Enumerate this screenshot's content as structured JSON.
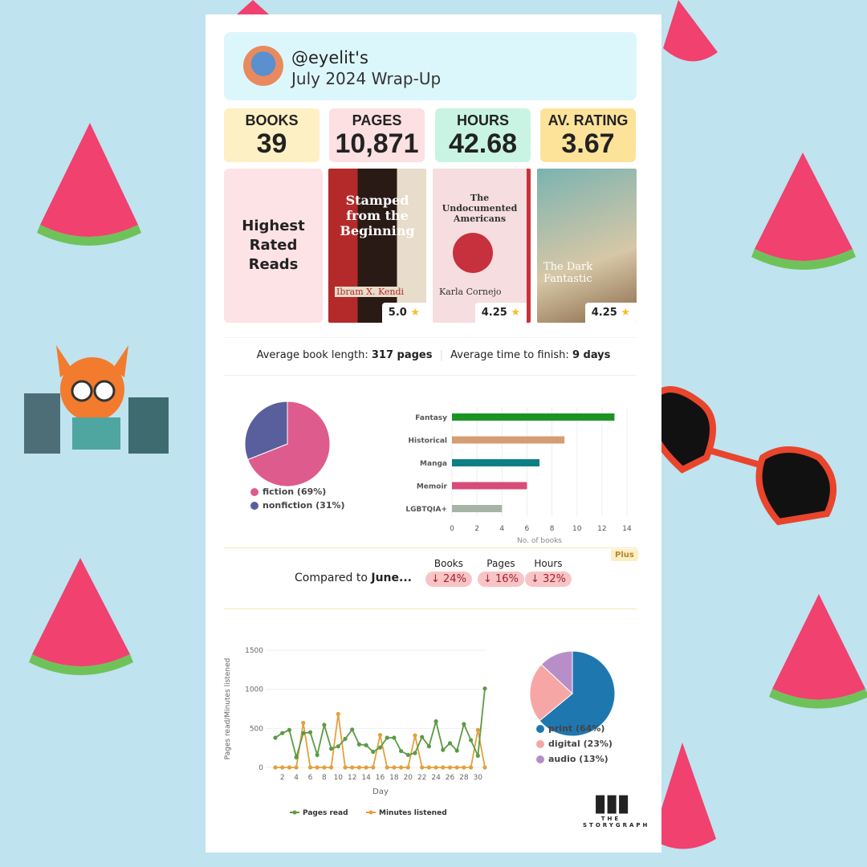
{
  "header": {
    "username": "@eyelit's",
    "title": "July 2024 Wrap-Up"
  },
  "stats": [
    {
      "label": "BOOKS",
      "value": "39",
      "color": "#fdf0c4"
    },
    {
      "label": "PAGES",
      "value": "10,871",
      "color": "#fde0e2"
    },
    {
      "label": "HOURS",
      "value": "42.68",
      "color": "#c9f4e4"
    },
    {
      "label": "AV. RATING",
      "value": "3.67",
      "color": "#fde39a"
    }
  ],
  "highest_rated": {
    "label": "Highest Rated Reads",
    "books": [
      {
        "title": "Stamped from the Beginning",
        "author": "Ibram X. Kendi",
        "rating": "5.0"
      },
      {
        "title": "The Undocumented Americans",
        "author": "Karla Cornejo",
        "rating": "4.25"
      },
      {
        "title": "The Dark Fantastic",
        "author": "",
        "rating": "4.25"
      }
    ]
  },
  "averages": {
    "length_label": "Average book length:",
    "length_value": "317 pages",
    "time_label": "Average time to finish:",
    "time_value": "9 days"
  },
  "comparison": {
    "label": "Compared to ",
    "month": "June...",
    "badge": "Plus",
    "items": [
      {
        "label": "Books",
        "change": "↓ 24%"
      },
      {
        "label": "Pages",
        "change": "↓ 16%"
      },
      {
        "label": "Hours",
        "change": "↓ 32%"
      }
    ]
  },
  "logo": {
    "text": "THE STORYGRAPH"
  },
  "chart_data": [
    {
      "type": "pie",
      "slices": [
        {
          "label": "fiction (69%)",
          "value": 69,
          "color": "#de5b8d"
        },
        {
          "label": "nonfiction (31%)",
          "value": 31,
          "color": "#595e9c"
        }
      ]
    },
    {
      "type": "bar",
      "orientation": "horizontal",
      "categories": [
        "Fantasy",
        "Historical",
        "Manga",
        "Memoir",
        "LGBTQIA+"
      ],
      "values": [
        13,
        9,
        7,
        6,
        4
      ],
      "colors": [
        "#1b9423",
        "#d59d73",
        "#0e7f85",
        "#d84c7a",
        "#a7b3a7"
      ],
      "xlabel": "No. of books",
      "xlim": [
        0,
        14
      ],
      "xticks": [
        0,
        2,
        4,
        6,
        8,
        10,
        12,
        14
      ],
      "grid": true
    },
    {
      "type": "line",
      "xlabel": "Day",
      "ylabel": "Pages read/Minutes listened",
      "ylim": [
        0,
        1500
      ],
      "yticks": [
        0,
        500,
        1000,
        1500
      ],
      "xticks": [
        2,
        4,
        6,
        8,
        10,
        12,
        14,
        16,
        18,
        20,
        22,
        24,
        26,
        28,
        30
      ],
      "legend": "bottom",
      "x": [
        1,
        2,
        3,
        4,
        5,
        6,
        7,
        8,
        9,
        10,
        11,
        12,
        13,
        14,
        15,
        16,
        17,
        18,
        19,
        20,
        21,
        22,
        23,
        24,
        25,
        26,
        27,
        28,
        29,
        30,
        31
      ],
      "series": [
        {
          "name": "Pages read",
          "color": "#5c9a45",
          "values": [
            380,
            440,
            480,
            130,
            440,
            450,
            160,
            545,
            240,
            270,
            365,
            485,
            295,
            285,
            200,
            255,
            380,
            380,
            210,
            160,
            185,
            390,
            270,
            590,
            225,
            310,
            215,
            555,
            350,
            150,
            1010
          ]
        },
        {
          "name": "Minutes listened",
          "color": "#e3a03c",
          "values": [
            0,
            0,
            0,
            0,
            570,
            0,
            0,
            0,
            0,
            685,
            0,
            0,
            0,
            0,
            0,
            415,
            0,
            0,
            0,
            0,
            410,
            0,
            0,
            0,
            0,
            0,
            0,
            0,
            0,
            480,
            0
          ]
        }
      ]
    },
    {
      "type": "pie",
      "slices": [
        {
          "label": "print (64%)",
          "value": 64,
          "color": "#1f77b0"
        },
        {
          "label": "digital (23%)",
          "value": 23,
          "color": "#f6a6a4"
        },
        {
          "label": "audio (13%)",
          "value": 13,
          "color": "#b88ec8"
        }
      ]
    }
  ]
}
